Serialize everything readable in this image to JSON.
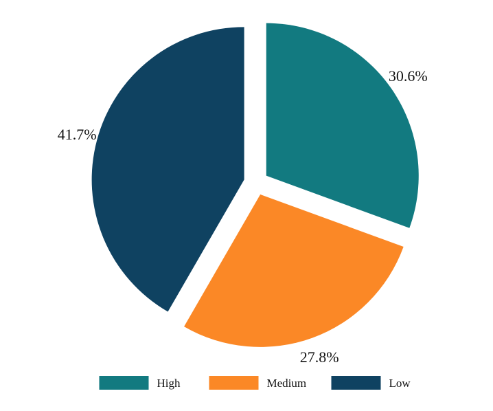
{
  "chart_data": {
    "type": "pie",
    "title": "",
    "categories": [
      "High",
      "Medium",
      "Low"
    ],
    "values": [
      30.6,
      27.8,
      41.7
    ],
    "data_labels": [
      "30.6%",
      "27.8%",
      "41.7%"
    ],
    "colors": [
      "#127a80",
      "#fb8826",
      "#0f4261"
    ],
    "exploded": true,
    "start_angle_deg": 0,
    "direction": "clockwise",
    "legend_position": "bottom"
  }
}
